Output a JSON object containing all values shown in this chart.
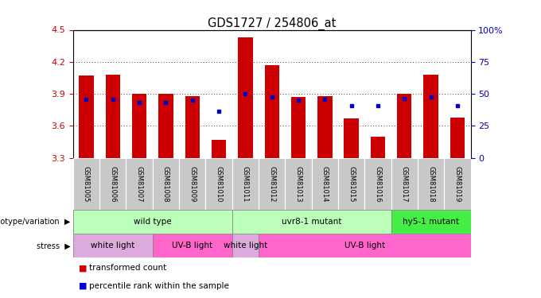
{
  "title": "GDS1727 / 254806_at",
  "samples": [
    "GSM81005",
    "GSM81006",
    "GSM81007",
    "GSM81008",
    "GSM81009",
    "GSM81010",
    "GSM81011",
    "GSM81012",
    "GSM81013",
    "GSM81014",
    "GSM81015",
    "GSM81016",
    "GSM81017",
    "GSM81018",
    "GSM81019"
  ],
  "red_values": [
    4.07,
    4.08,
    3.9,
    3.9,
    3.88,
    3.47,
    4.43,
    4.17,
    3.87,
    3.88,
    3.67,
    3.5,
    3.9,
    4.08,
    3.68
  ],
  "blue_values": [
    3.85,
    3.85,
    3.82,
    3.82,
    3.84,
    3.74,
    3.9,
    3.87,
    3.84,
    3.85,
    3.79,
    3.79,
    3.86,
    3.87,
    3.79
  ],
  "ymin": 3.3,
  "ymax": 4.5,
  "yticks": [
    3.3,
    3.6,
    3.9,
    4.2,
    4.5
  ],
  "right_yticks": [
    0,
    25,
    50,
    75,
    100
  ],
  "right_tick_labels": [
    "0",
    "25",
    "50",
    "75",
    "100%"
  ],
  "genotype_groups": [
    {
      "label": "wild type",
      "start": 0,
      "end": 6,
      "color": "#BBFFBB"
    },
    {
      "label": "uvr8-1 mutant",
      "start": 6,
      "end": 12,
      "color": "#BBFFBB"
    },
    {
      "label": "hy5-1 mutant",
      "start": 12,
      "end": 15,
      "color": "#44EE44"
    }
  ],
  "stress_groups": [
    {
      "label": "white light",
      "start": 0,
      "end": 3,
      "color": "#DDAADD"
    },
    {
      "label": "UV-B light",
      "start": 3,
      "end": 6,
      "color": "#FF66CC"
    },
    {
      "label": "white light",
      "start": 6,
      "end": 7,
      "color": "#DDAADD"
    },
    {
      "label": "UV-B light",
      "start": 7,
      "end": 15,
      "color": "#FF66CC"
    }
  ],
  "bar_color": "#CC0000",
  "dot_color": "#0000CC",
  "tick_color_left": "#CC0000",
  "tick_color_right": "#0000BB",
  "sample_box_color": "#C8C8C8",
  "geno_border_color": "#888888",
  "stress_border_color": "#888888"
}
